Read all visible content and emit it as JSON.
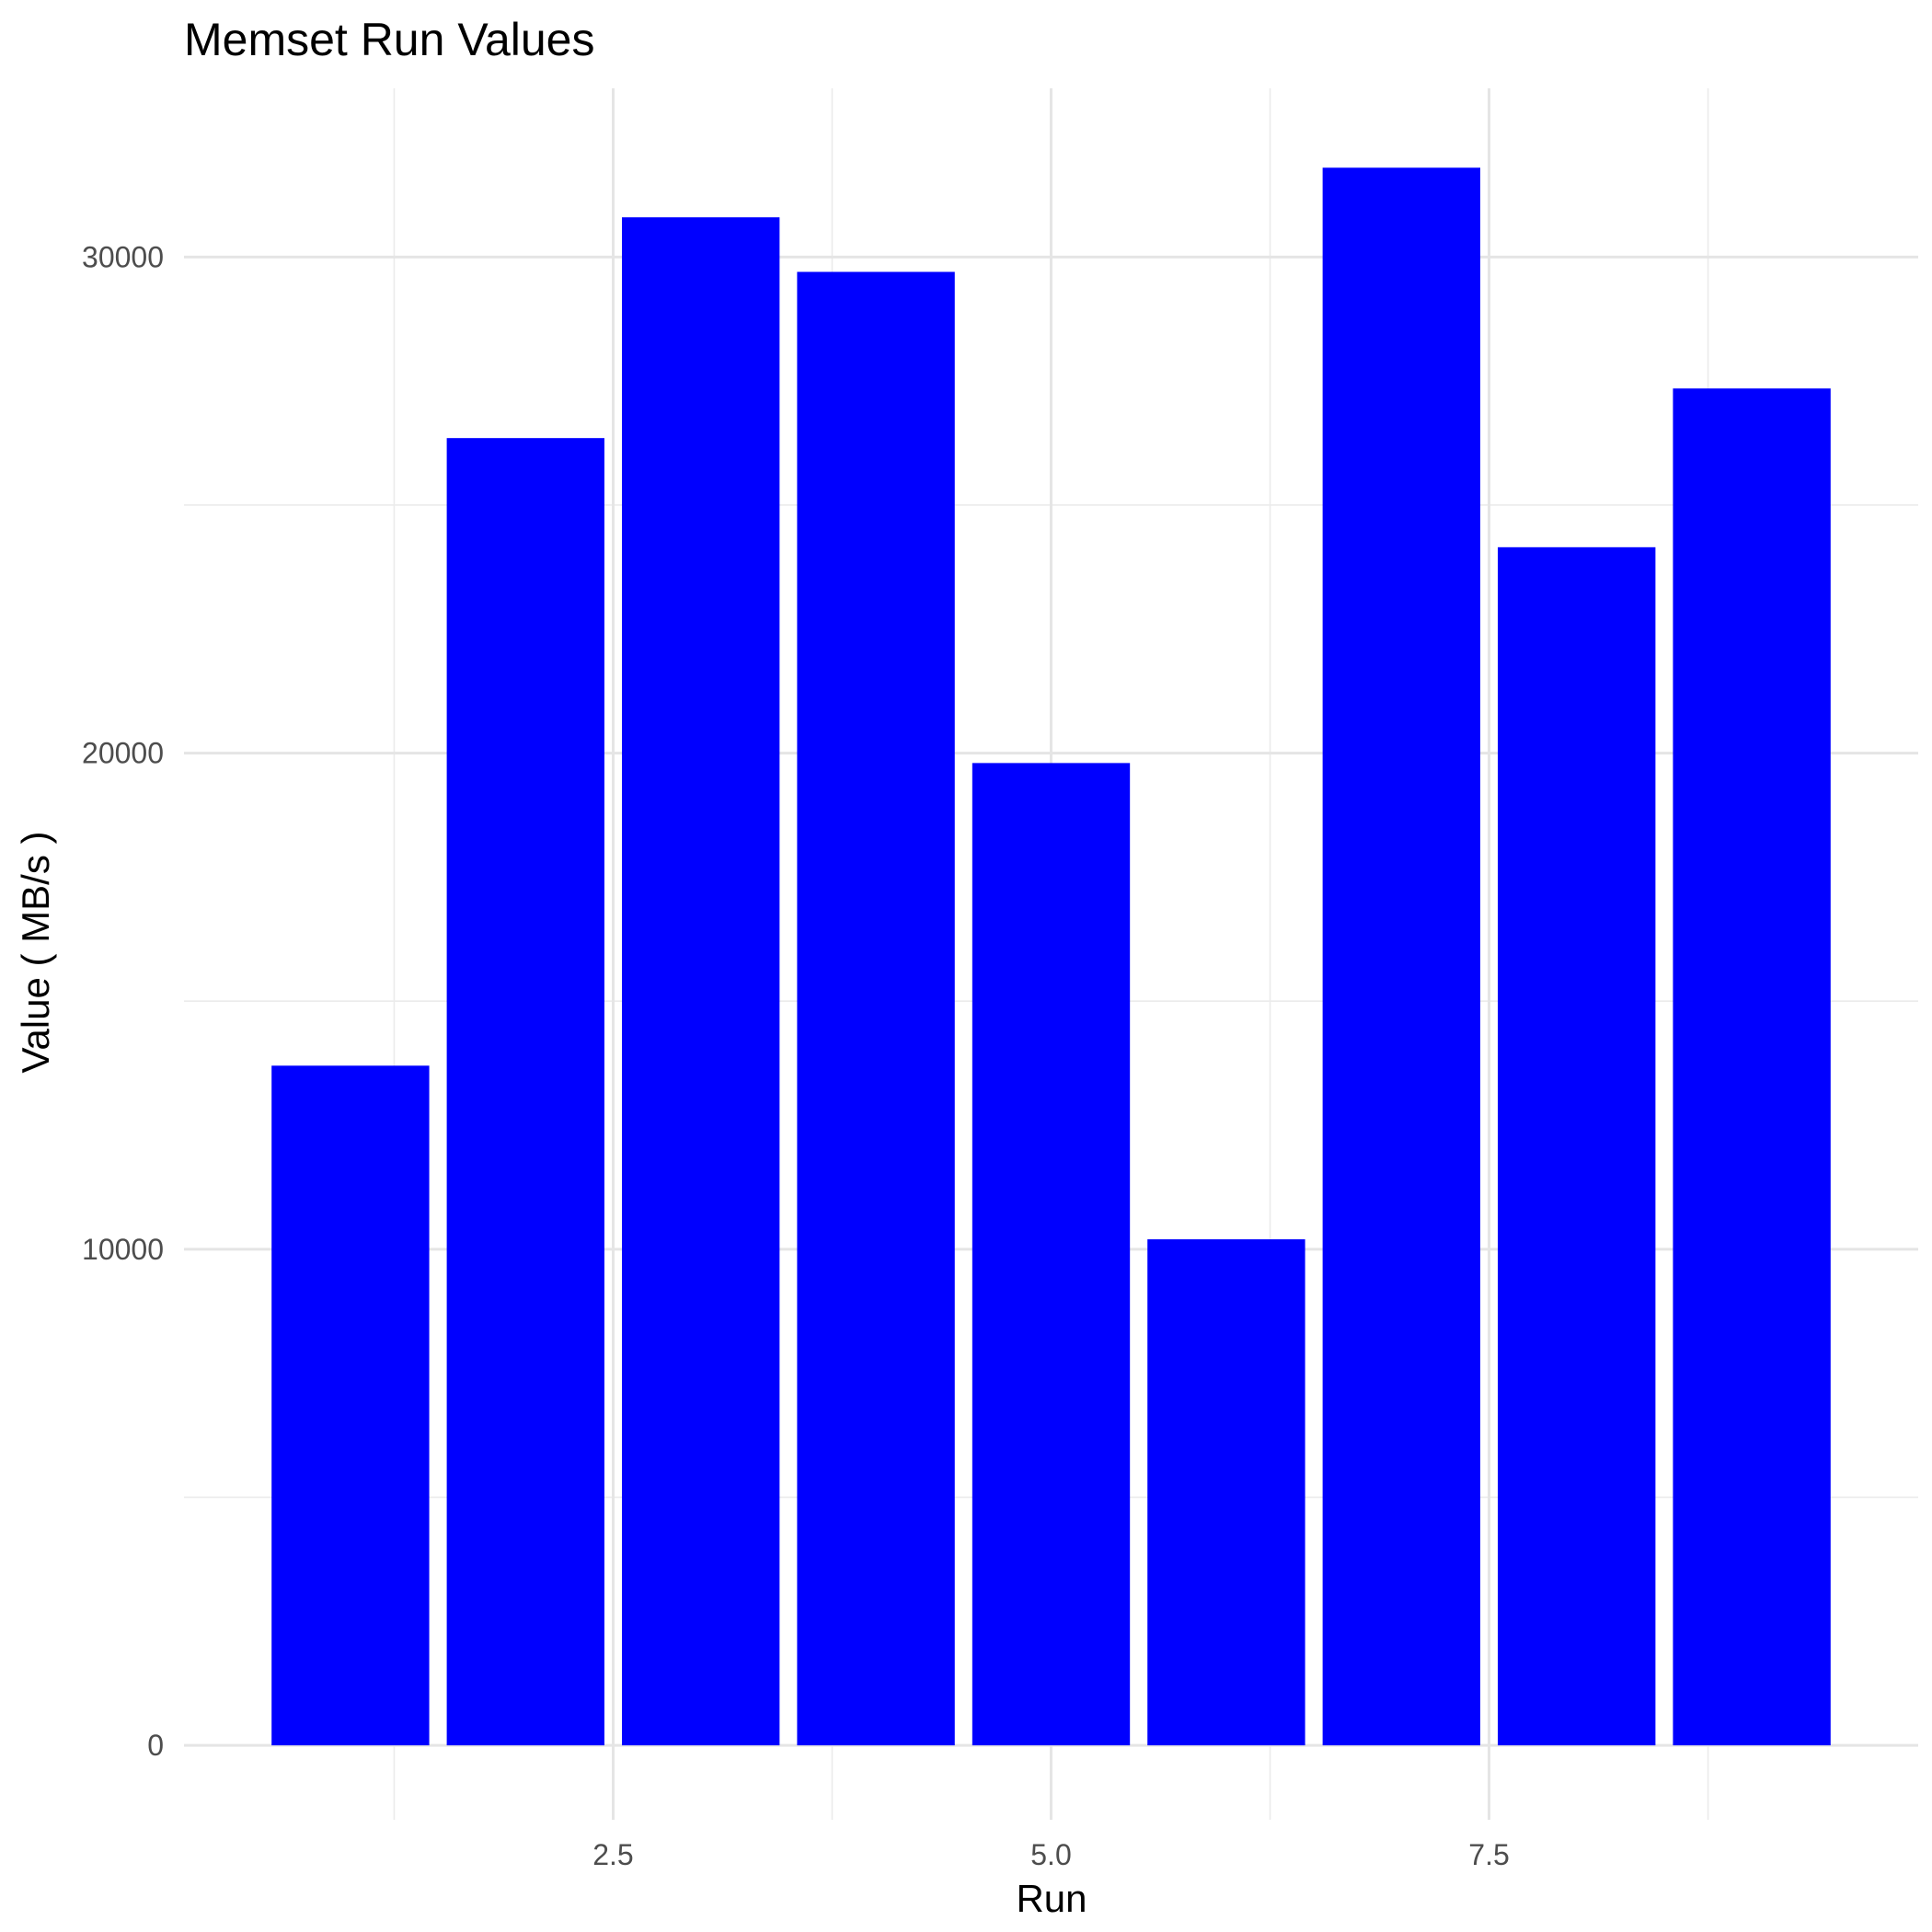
{
  "chart_data": {
    "type": "bar",
    "title": "Memset Run Values",
    "xlabel": "Run",
    "ylabel": "Value ( MB/s )",
    "x": [
      1,
      2,
      3,
      4,
      5,
      6,
      7,
      8,
      9
    ],
    "values": [
      13700,
      26350,
      30800,
      29700,
      19800,
      10200,
      31800,
      24150,
      27350
    ],
    "xlim": [
      0.05,
      9.95
    ],
    "ylim": [
      -1500,
      33400
    ],
    "x_ticks": [
      2.5,
      5.0,
      7.5
    ],
    "x_tick_labels": [
      "2.5",
      "5.0",
      "7.5"
    ],
    "x_minor_ticks": [
      1.25,
      3.75,
      6.25,
      8.75
    ],
    "y_ticks": [
      0,
      10000,
      20000,
      30000
    ],
    "y_tick_labels": [
      "0",
      "10000",
      "20000",
      "30000"
    ],
    "y_minor_ticks": [
      5000,
      15000,
      25000
    ],
    "bar_width": 0.9,
    "bar_color": "#0000ff",
    "grid": true,
    "legend": "none",
    "background": "#ffffff"
  }
}
